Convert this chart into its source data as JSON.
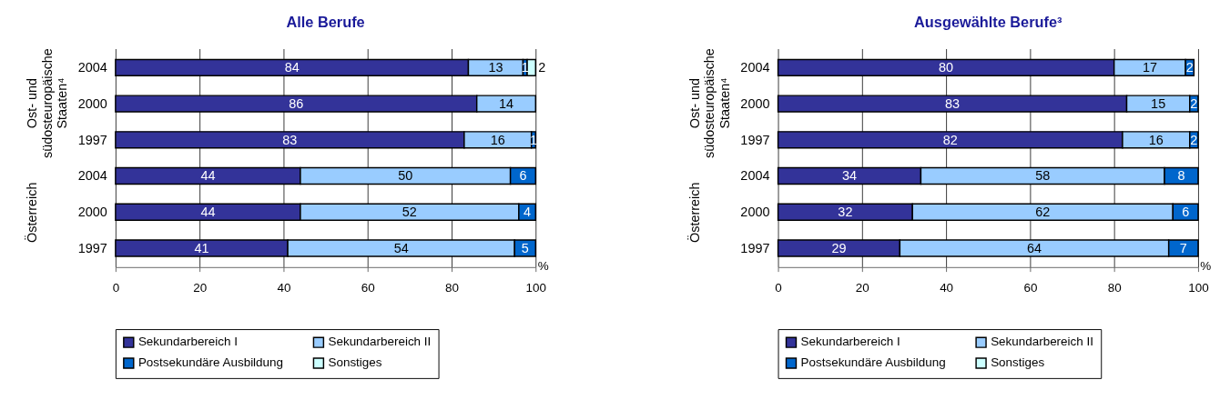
{
  "chart_data": [
    {
      "type": "bar",
      "orientation": "horizontal",
      "stacked": true,
      "title": "Alle Berufe",
      "xlabel": "%",
      "categories": [
        "2004",
        "2000",
        "1997",
        "2004",
        "2000",
        "1997"
      ],
      "series": [
        {
          "name": "Sekundarbereich I",
          "color": "#333399",
          "values": [
            84,
            86,
            83,
            44,
            44,
            41
          ]
        },
        {
          "name": "Sekundarbereich II",
          "color": "#99ccff",
          "values": [
            13,
            14,
            16,
            50,
            52,
            54
          ]
        },
        {
          "name": "Postsekundäre Ausbildung",
          "color": "#0066cc",
          "values": [
            1,
            null,
            1,
            6,
            4,
            5
          ]
        },
        {
          "name": "Sonstiges",
          "color": "#ccffff",
          "values": [
            2,
            null,
            null,
            null,
            null,
            null
          ]
        }
      ],
      "xlim": [
        0,
        100
      ],
      "xticks": [
        0,
        20,
        40,
        60,
        80,
        100
      ],
      "grid": "x",
      "legend": "bottom",
      "data_labels": true,
      "annotations": [
        "Ost- und\nsüdosteuropäische\nStaaten⁴",
        "Österreich"
      ]
    },
    {
      "type": "bar",
      "orientation": "horizontal",
      "stacked": true,
      "title": "Ausgewählte Berufe³",
      "xlabel": "%",
      "categories": [
        "2004",
        "2000",
        "1997",
        "2004",
        "2000",
        "1997"
      ],
      "series": [
        {
          "name": "Sekundarbereich I",
          "color": "#333399",
          "values": [
            80,
            83,
            82,
            34,
            32,
            29
          ]
        },
        {
          "name": "Sekundarbereich II",
          "color": "#99ccff",
          "values": [
            17,
            15,
            16,
            58,
            62,
            64
          ]
        },
        {
          "name": "Postsekundäre Ausbildung",
          "color": "#0066cc",
          "values": [
            2,
            2,
            2,
            8,
            6,
            7
          ]
        },
        {
          "name": "Sonstiges",
          "color": "#ccffff",
          "values": [
            null,
            null,
            null,
            null,
            null,
            null
          ]
        }
      ],
      "xlim": [
        0,
        100
      ],
      "xticks": [
        0,
        20,
        40,
        60,
        80,
        100
      ],
      "grid": "x",
      "legend": "bottom",
      "data_labels": true,
      "annotations": [
        "Ost- und\nsüdosteuropäische\nStaaten⁴",
        "Österreich"
      ]
    }
  ]
}
